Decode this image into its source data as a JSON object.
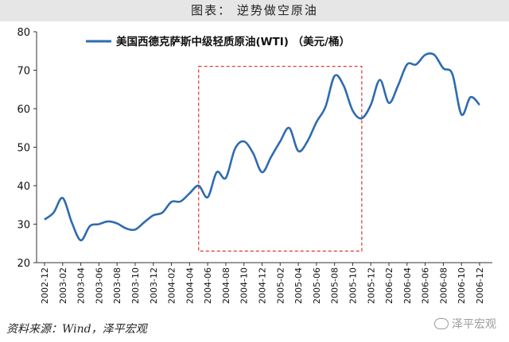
{
  "header": {
    "title": "图表： 逆势做空原油"
  },
  "footer": {
    "source": "资料来源：Wind，泽平宏观",
    "watermark": "泽平宏观"
  },
  "chart_data": {
    "type": "line",
    "title": "",
    "xlabel": "",
    "ylabel": "",
    "ylim": [
      20,
      80
    ],
    "yticks": [
      20,
      30,
      40,
      50,
      60,
      70,
      80
    ],
    "xticks": [
      "2002-12",
      "2003-02",
      "2003-04",
      "2003-06",
      "2003-08",
      "2003-10",
      "2003-12",
      "2004-02",
      "2004-04",
      "2004-06",
      "2004-08",
      "2004-10",
      "2004-12",
      "2005-02",
      "2005-04",
      "2005-06",
      "2005-08",
      "2005-10",
      "2005-12",
      "2006-02",
      "2006-04",
      "2006-06",
      "2006-08",
      "2006-10",
      "2006-12"
    ],
    "grid": false,
    "legend_position": "top",
    "line_color": "#2e6bb0",
    "highlight_color": "#e0403a",
    "highlight": {
      "from": "2004-05",
      "to": "2005-11",
      "y_from": 23,
      "y_to": 71
    },
    "series": [
      {
        "name": "美国西德克萨斯中级轻质原油(WTI) （美元/桶）",
        "x": [
          "2002-12",
          "2003-01",
          "2003-02",
          "2003-03",
          "2003-04",
          "2003-05",
          "2003-06",
          "2003-07",
          "2003-08",
          "2003-09",
          "2003-10",
          "2003-11",
          "2003-12",
          "2004-01",
          "2004-02",
          "2004-03",
          "2004-04",
          "2004-05",
          "2004-06",
          "2004-07",
          "2004-08",
          "2004-09",
          "2004-10",
          "2004-11",
          "2004-12",
          "2005-01",
          "2005-02",
          "2005-03",
          "2005-04",
          "2005-05",
          "2005-06",
          "2005-07",
          "2005-08",
          "2005-09",
          "2005-10",
          "2005-11",
          "2005-12",
          "2006-01",
          "2006-02",
          "2006-03",
          "2006-04",
          "2006-05",
          "2006-06",
          "2006-07",
          "2006-08",
          "2006-09",
          "2006-10",
          "2006-11",
          "2006-12"
        ],
        "values": [
          31.2,
          33.0,
          36.8,
          30.5,
          25.8,
          29.5,
          30.0,
          30.7,
          30.2,
          28.9,
          28.6,
          30.5,
          32.3,
          33.0,
          35.8,
          35.9,
          38.0,
          40.0,
          37.0,
          43.5,
          42.0,
          49.5,
          51.5,
          48.5,
          43.5,
          47.5,
          51.5,
          55.0,
          49.0,
          51.5,
          56.5,
          60.5,
          68.5,
          66.0,
          59.5,
          57.5,
          61.0,
          67.5,
          61.5,
          66.0,
          71.5,
          71.5,
          74.0,
          74.0,
          70.5,
          69.0,
          58.5,
          63.0,
          61.0
        ]
      }
    ]
  }
}
